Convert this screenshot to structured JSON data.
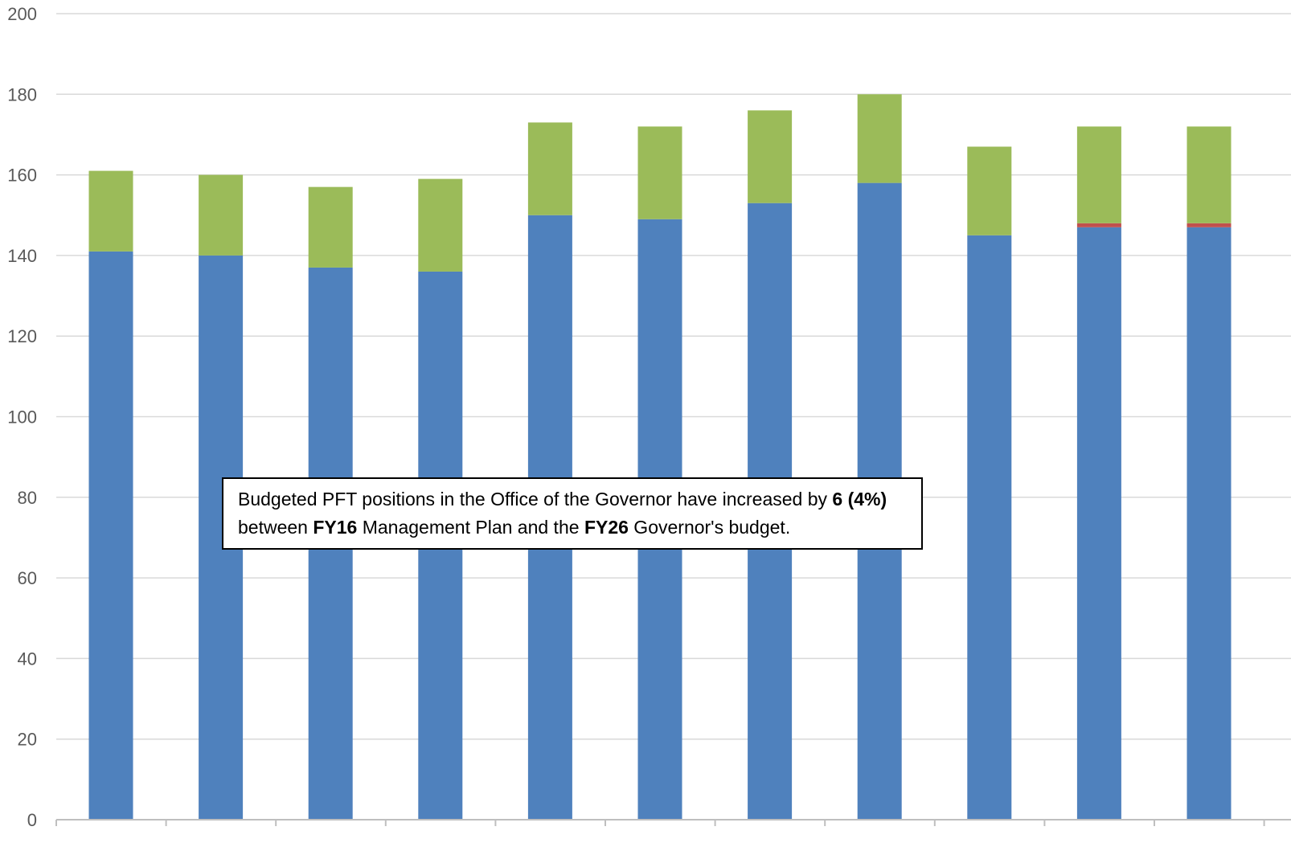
{
  "chart_data": {
    "type": "bar",
    "stacked": true,
    "title": "",
    "xlabel": "",
    "ylabel": "",
    "ylim": [
      0,
      200
    ],
    "yticks": [
      0,
      20,
      40,
      60,
      80,
      100,
      120,
      140,
      160,
      180,
      200
    ],
    "grid": true,
    "categories": [
      "",
      "",
      "",
      "",
      "",
      "",
      "",
      "",
      "",
      "",
      ""
    ],
    "series": [
      {
        "values": [
          141,
          140,
          137,
          136,
          150,
          149,
          153,
          158,
          145,
          147,
          147
        ],
        "color": "#4f81bd"
      },
      {
        "values": [
          0,
          0,
          0,
          0,
          0,
          0,
          0,
          0,
          0,
          1,
          1
        ],
        "color": "#c0504d"
      },
      {
        "values": [
          20,
          20,
          20,
          23,
          23,
          23,
          23,
          22,
          22,
          24,
          24
        ],
        "color": "#9bbb59"
      }
    ],
    "annotation": {
      "parts": [
        {
          "text": "Budgeted PFT positions in the Office of the Governor have increased by ",
          "bold": false
        },
        {
          "text": "6 (4%)",
          "bold": true
        },
        {
          "text": " between ",
          "bold": false
        },
        {
          "text": "FY16",
          "bold": true
        },
        {
          "text": " Management Plan and the ",
          "bold": false
        },
        {
          "text": "FY26",
          "bold": true
        },
        {
          "text": " Governor's budget.",
          "bold": false
        }
      ]
    }
  }
}
